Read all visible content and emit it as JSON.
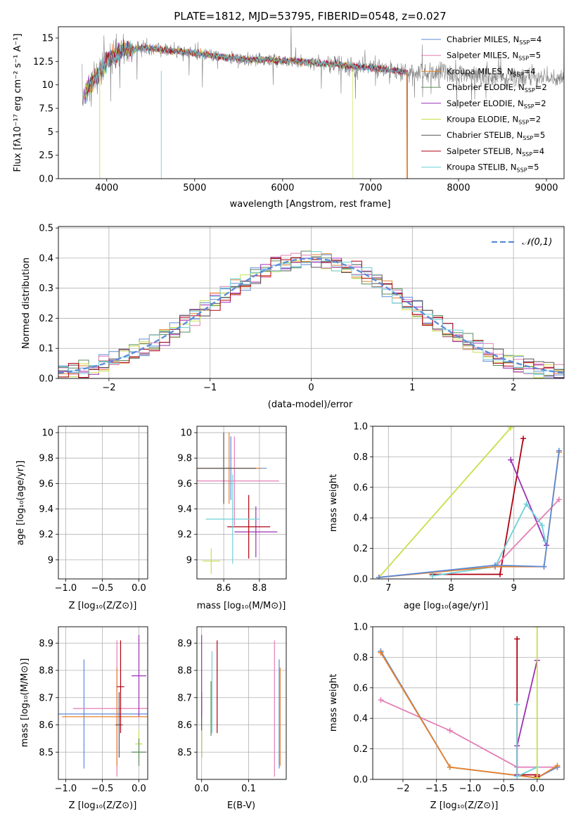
{
  "chart_data": [
    {
      "type": "line",
      "title": "PLATE=1812, MJD=53795, FIBERID=0548, z=0.027",
      "xlabel": "wavelength [Angstrom, rest frame]",
      "ylabel": "Flux [fλ10⁻¹⁷ erg cm⁻² s⁻¹ A⁻¹]",
      "xlim": [
        3450,
        9200
      ],
      "ylim": [
        0,
        16.2
      ],
      "xticks": [
        4000,
        5000,
        6000,
        7000,
        8000,
        9000
      ],
      "yticks": [
        0.0,
        2.5,
        5.0,
        7.5,
        10.0,
        12.5,
        15.0
      ],
      "grid": false,
      "legend_position": "top-right",
      "legend": [
        "Chabrier MILES, N_SSP=4",
        "Salpeter MILES, N_SSP=5",
        "Kroupa MILES, N_SSP=4",
        "Chabrier ELODIE, N_SSP=2",
        "Salpeter ELODIE, N_SSP=2",
        "Kroupa ELODIE, N_SSP=2",
        "Chabrier STELIB, N_SSP=5",
        "Salpeter STELIB, N_SSP=4",
        "Kroupa STELIB, N_SSP=5"
      ],
      "spectrum_envelope": {
        "x": [
          3720,
          3800,
          3900,
          4000,
          4100,
          4200,
          4300,
          4400,
          4500,
          4600,
          4700,
          4800,
          4900,
          5000,
          5200,
          5400,
          5600,
          5800,
          6000,
          6200,
          6400,
          6600,
          6800,
          7000,
          7200,
          7400,
          7600,
          7800,
          8000,
          8200,
          8400,
          8600,
          8800,
          9000,
          9200
        ],
        "y": [
          8.5,
          10.0,
          11.0,
          12.6,
          13.2,
          13.8,
          13.8,
          13.9,
          13.9,
          13.8,
          13.7,
          13.6,
          13.5,
          13.4,
          13.1,
          12.9,
          12.7,
          12.7,
          12.6,
          12.5,
          12.3,
          12.2,
          12.0,
          11.8,
          11.6,
          11.4,
          11.3,
          11.3,
          11.2,
          11.1,
          11.0,
          10.9,
          10.8,
          10.7,
          10.6
        ]
      }
    },
    {
      "type": "line",
      "xlabel": "(data-model)/error",
      "ylabel": "Normed distribution",
      "xlim": [
        -2.5,
        2.5
      ],
      "ylim": [
        0,
        0.505
      ],
      "xticks": [
        -2,
        -1,
        0,
        1,
        2
      ],
      "yticks": [
        0.0,
        0.1,
        0.2,
        0.3,
        0.4,
        0.5
      ],
      "grid": true,
      "legend_position": "top-right",
      "legend": [
        "𝒩(0,1)"
      ],
      "series": [
        {
          "name": "𝒩(0,1)",
          "style": "dashed",
          "function": "normal_pdf",
          "mu": 0,
          "sigma": 1
        }
      ]
    },
    {
      "type": "scatter",
      "xlabel": "Z [log₁₀(Z/Z⊙)]",
      "ylabel": "age  [log₁₀(age/yr)]",
      "xlim": [
        -1.1,
        0.12
      ],
      "ylim": [
        8.85,
        10.05
      ],
      "xticks": [
        -1.0,
        -0.5,
        0.0
      ],
      "yticks": [
        9.0,
        9.2,
        9.4,
        9.6,
        9.8,
        10.0
      ],
      "grid": true,
      "points": [
        {
          "x": -0.75,
          "y": 9.72,
          "xerr": 0.95,
          "yerr": 0.25,
          "color": "#5b8bd8"
        },
        {
          "x": -0.3,
          "y": 9.62,
          "xerr": 0.6,
          "yerr": 0.35,
          "color": "#e47fb4"
        },
        {
          "x": -0.25,
          "y": 9.7,
          "xerr": 0.75,
          "yerr": 0.3,
          "color": "#e8822d"
        },
        {
          "x": -0.25,
          "y": 9.72,
          "xerr": 0.8,
          "yerr": 0.28,
          "color": "#5b8a5b"
        },
        {
          "x": 0.0,
          "y": 9.22,
          "xerr": 0.1,
          "yerr": 0.2,
          "color": "#9b2fb5"
        },
        {
          "x": 0.0,
          "y": 8.99,
          "xerr": 0.12,
          "yerr": 0.1,
          "color": "#c6e04a"
        },
        {
          "x": -0.25,
          "y": 9.72,
          "xerr": 0.8,
          "yerr": 0.28,
          "color": "#555555"
        },
        {
          "x": -0.27,
          "y": 9.26,
          "xerr": 0.05,
          "yerr": 0.25,
          "color": "#b00010"
        },
        {
          "x": -0.2,
          "y": 9.32,
          "xerr": 0.1,
          "yerr": 0.35,
          "color": "#6ed0d8"
        }
      ]
    },
    {
      "type": "scatter",
      "xlabel": "mass [log₁₀(M/M⊙)]",
      "xlim": [
        8.45,
        8.95
      ],
      "ylim": [
        8.85,
        10.05
      ],
      "xticks": [
        8.6,
        8.8
      ],
      "yticks": [
        9.0,
        9.2,
        9.4,
        9.6,
        9.8,
        10.0
      ],
      "grid": true,
      "points": [
        {
          "x": 8.64,
          "y": 9.72,
          "xerr": 0.2,
          "yerr": 0.25,
          "color": "#5b8bd8"
        },
        {
          "x": 8.66,
          "y": 9.62,
          "xerr": 0.25,
          "yerr": 0.35,
          "color": "#e47fb4"
        },
        {
          "x": 8.63,
          "y": 9.72,
          "xerr": 0.18,
          "yerr": 0.28,
          "color": "#e8822d"
        },
        {
          "x": 8.6,
          "y": 9.72,
          "xerr": 0.18,
          "yerr": 0.28,
          "color": "#555555"
        },
        {
          "x": 8.78,
          "y": 9.22,
          "xerr": 0.12,
          "yerr": 0.2,
          "color": "#9b2fb5"
        },
        {
          "x": 8.53,
          "y": 8.99,
          "xerr": 0.05,
          "yerr": 0.1,
          "color": "#c6e04a"
        },
        {
          "x": 8.74,
          "y": 9.26,
          "xerr": 0.12,
          "yerr": 0.25,
          "color": "#b00010"
        },
        {
          "x": 8.65,
          "y": 9.32,
          "xerr": 0.15,
          "yerr": 0.35,
          "color": "#6ed0d8"
        }
      ]
    },
    {
      "type": "line",
      "xlabel": "age  [log₁₀(age/yr)]",
      "ylabel": "mass weight",
      "xlim": [
        6.75,
        9.8
      ],
      "ylim": [
        0,
        1.0
      ],
      "xticks": [
        7,
        8,
        9
      ],
      "yticks": [
        0.0,
        0.2,
        0.4,
        0.6,
        0.8,
        1.0
      ],
      "grid": true,
      "series": [
        {
          "color": "#c6e04a",
          "x": [
            6.85,
            8.95
          ],
          "y": [
            0.01,
            0.99
          ]
        },
        {
          "color": "#b00010",
          "x": [
            7.7,
            8.78,
            9.15
          ],
          "y": [
            0.03,
            0.03,
            0.92
          ]
        },
        {
          "color": "#9b2fb5",
          "x": [
            8.95,
            9.52
          ],
          "y": [
            0.78,
            0.22
          ]
        },
        {
          "color": "#e47fb4",
          "x": [
            8.7,
            9.72
          ],
          "y": [
            0.08,
            0.52
          ]
        },
        {
          "color": "#6ed0d8",
          "x": [
            7.7,
            8.7,
            9.2,
            9.45,
            9.5
          ],
          "y": [
            0.02,
            0.08,
            0.49,
            0.35,
            0.25
          ]
        },
        {
          "color": "#e8822d",
          "x": [
            6.85,
            8.7,
            9.48,
            9.72
          ],
          "y": [
            0.01,
            0.08,
            0.08,
            0.83
          ]
        },
        {
          "color": "#5b8bd8",
          "x": [
            6.85,
            8.7,
            9.48,
            9.72
          ],
          "y": [
            0.01,
            0.09,
            0.08,
            0.84
          ]
        }
      ]
    },
    {
      "type": "scatter",
      "xlabel": "Z [log₁₀(Z/Z⊙)]",
      "ylabel": "mass [log₁₀(M/M⊙)]",
      "xlim": [
        -1.1,
        0.12
      ],
      "ylim": [
        8.4,
        8.96
      ],
      "xticks": [
        -1.0,
        -0.5,
        0.0
      ],
      "yticks": [
        8.5,
        8.6,
        8.7,
        8.8,
        8.9
      ],
      "grid": true,
      "points": [
        {
          "x": -0.75,
          "y": 8.64,
          "xerr": 0.9,
          "yerr": 0.2,
          "color": "#5b8bd8"
        },
        {
          "x": -0.3,
          "y": 8.66,
          "xerr": 0.6,
          "yerr": 0.25,
          "color": "#e47fb4"
        },
        {
          "x": -0.3,
          "y": 8.63,
          "xerr": 0.75,
          "yerr": 0.18,
          "color": "#e8822d"
        },
        {
          "x": -0.27,
          "y": 8.6,
          "xerr": 0.05,
          "yerr": 0.12,
          "color": "#555555"
        },
        {
          "x": 0.0,
          "y": 8.78,
          "xerr": 0.1,
          "yerr": 0.15,
          "color": "#9b2fb5"
        },
        {
          "x": 0.0,
          "y": 8.53,
          "xerr": 0.05,
          "yerr": 0.05,
          "color": "#c6e04a"
        },
        {
          "x": -0.25,
          "y": 8.74,
          "xerr": 0.05,
          "yerr": 0.17,
          "color": "#b00010"
        },
        {
          "x": 0.0,
          "y": 8.5,
          "xerr": 0.1,
          "yerr": 0.05,
          "color": "#5b8a5b"
        }
      ]
    },
    {
      "type": "scatter",
      "xlabel": "E(B-V)",
      "xlim": [
        -0.01,
        0.18
      ],
      "ylim": [
        8.4,
        8.96
      ],
      "xticks": [
        0.0,
        0.1
      ],
      "yticks": [
        8.5,
        8.6,
        8.7,
        8.8,
        8.9
      ],
      "grid": true,
      "points": [
        {
          "x": 0.165,
          "y": 8.64,
          "yerr": 0.2,
          "color": "#5b8bd8"
        },
        {
          "x": 0.155,
          "y": 8.66,
          "yerr": 0.25,
          "color": "#e47fb4"
        },
        {
          "x": 0.167,
          "y": 8.63,
          "yerr": 0.18,
          "color": "#e8822d"
        },
        {
          "x": 0.0,
          "y": 8.6,
          "yerr": 0.12,
          "color": "#555555"
        },
        {
          "x": 0.0,
          "y": 8.78,
          "yerr": 0.15,
          "color": "#9b2fb5"
        },
        {
          "x": 0.0,
          "y": 8.53,
          "yerr": 0.05,
          "color": "#c6e04a"
        },
        {
          "x": 0.033,
          "y": 8.74,
          "yerr": 0.17,
          "color": "#b00010"
        },
        {
          "x": 0.022,
          "y": 8.72,
          "yerr": 0.15,
          "color": "#6ed0d8"
        },
        {
          "x": 0.02,
          "y": 8.66,
          "yerr": 0.1,
          "color": "#5b8a5b"
        }
      ]
    },
    {
      "type": "line",
      "xlabel": "Z [log₁₀(Z/Z⊙)]",
      "ylabel": "mass weight",
      "xlim": [
        -2.45,
        0.4
      ],
      "ylim": [
        0,
        1.0
      ],
      "xticks": [
        -2.0,
        -1.5,
        -1.0,
        -0.5,
        0.0
      ],
      "yticks": [
        0.0,
        0.2,
        0.4,
        0.6,
        0.8,
        1.0
      ],
      "grid": true,
      "series": [
        {
          "color": "#e47fb4",
          "x": [
            -2.33,
            -1.3,
            -0.3,
            0.0,
            0.3
          ],
          "y": [
            0.52,
            0.32,
            0.08,
            0.08,
            0.08
          ]
        },
        {
          "color": "#5b8bd8",
          "x": [
            -2.33,
            -1.3,
            0.0,
            0.3
          ],
          "y": [
            0.84,
            0.08,
            0.01,
            0.08
          ]
        },
        {
          "color": "#e8822d",
          "x": [
            -2.33,
            -1.3,
            0.0,
            0.3
          ],
          "y": [
            0.83,
            0.08,
            0.01,
            0.09
          ]
        },
        {
          "color": "#b00010",
          "x": [
            -0.3,
            -0.3,
            0.0,
            0.0
          ],
          "y": [
            0.92,
            0.03,
            0.03,
            0.02
          ]
        },
        {
          "color": "#9b2fb5",
          "x": [
            0.0,
            -0.3,
            -0.3
          ],
          "y": [
            0.78,
            0.22,
            0.03
          ]
        },
        {
          "color": "#6ed0d8",
          "x": [
            -0.3,
            -0.3,
            0.0
          ],
          "y": [
            0.49,
            0.02,
            0.08
          ]
        },
        {
          "color": "#c6e04a",
          "x": [
            0.0,
            0.0
          ],
          "y": [
            1.0,
            0.01
          ]
        }
      ]
    }
  ],
  "colors": {
    "chabrier_miles": "#5b8bd8",
    "salpeter_miles": "#e47fb4",
    "kroupa_miles": "#e8822d",
    "chabrier_elodie": "#5b8a5b",
    "salpeter_elodie": "#9b2fb5",
    "kroupa_elodie": "#c6e04a",
    "chabrier_stelib": "#555555",
    "salpeter_stelib": "#b00010",
    "kroupa_stelib": "#6ed0d8",
    "normal_curve": "#5b8bd8",
    "grid": "#b0b0b0"
  }
}
